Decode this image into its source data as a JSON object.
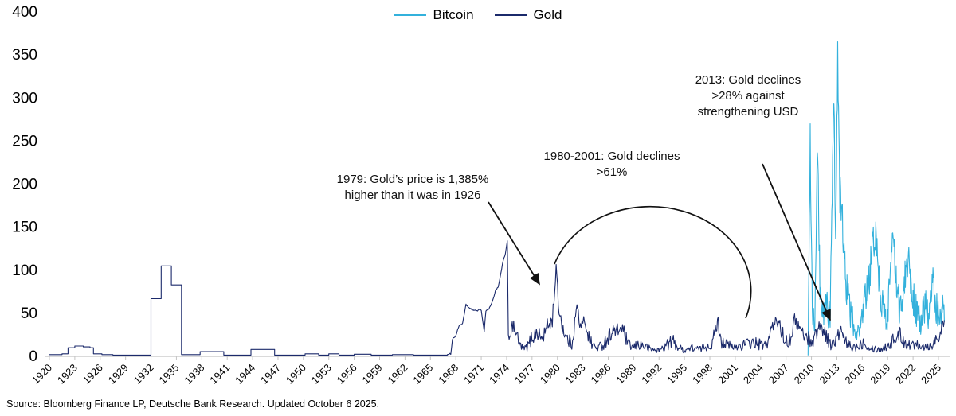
{
  "legend": {
    "items": [
      {
        "label": "Bitcoin",
        "color": "#33b1dc"
      },
      {
        "label": "Gold",
        "color": "#1b2a6b"
      }
    ]
  },
  "annotations": {
    "a1979": {
      "text": "1979: Gold’s price is 1,385% higher than it was in 1926"
    },
    "a1980": {
      "text": "1980-2001: Gold declines >61%"
    },
    "a2013": {
      "text": "2013: Gold declines >28% against strengthening USD"
    }
  },
  "source": "Source: Bloomberg Finance LP, Deutsche Bank Research. Updated October 6 2025.",
  "chart_data": {
    "type": "line",
    "title": "",
    "xlabel": "",
    "ylabel": "",
    "grid": false,
    "legend_position": "top-center",
    "axis_color": "#c4c4c4",
    "x_range": [
      1920,
      2025.8
    ],
    "ylim": [
      0,
      400
    ],
    "y_ticks": [
      0,
      50,
      100,
      150,
      200,
      250,
      300,
      350,
      400
    ],
    "x_ticks": [
      1920,
      1923,
      1926,
      1929,
      1932,
      1935,
      1938,
      1941,
      1944,
      1947,
      1950,
      1953,
      1956,
      1959,
      1962,
      1965,
      1968,
      1971,
      1974,
      1977,
      1980,
      1983,
      1986,
      1989,
      1992,
      1995,
      1998,
      2001,
      2004,
      2007,
      2010,
      2013,
      2016,
      2019,
      2022,
      2025
    ],
    "series": [
      {
        "name": "Bitcoin",
        "color": "#33b1dc",
        "stroke_width": 1.1,
        "noise": {
          "floor": 6,
          "fraction": 0.38,
          "cap": 24,
          "dt": 0.05,
          "seed": 99
        },
        "points": [
          [
            2009.6,
            4
          ],
          [
            2009.85,
            255
          ],
          [
            2010.1,
            60
          ],
          [
            2010.4,
            35
          ],
          [
            2010.7,
            242
          ],
          [
            2011.0,
            80
          ],
          [
            2011.4,
            45
          ],
          [
            2011.8,
            65
          ],
          [
            2012.2,
            40
          ],
          [
            2012.65,
            310
          ],
          [
            2012.85,
            130
          ],
          [
            2013.1,
            352
          ],
          [
            2013.35,
            190
          ],
          [
            2013.7,
            150
          ],
          [
            2014.0,
            95
          ],
          [
            2014.4,
            60
          ],
          [
            2014.9,
            40
          ],
          [
            2015.3,
            25
          ],
          [
            2015.8,
            35
          ],
          [
            2016.3,
            60
          ],
          [
            2016.8,
            90
          ],
          [
            2017.2,
            120
          ],
          [
            2017.6,
            148
          ],
          [
            2017.95,
            95
          ],
          [
            2018.4,
            60
          ],
          [
            2018.9,
            35
          ],
          [
            2019.3,
            105
          ],
          [
            2019.7,
            135
          ],
          [
            2020.1,
            65
          ],
          [
            2020.6,
            55
          ],
          [
            2021.0,
            95
          ],
          [
            2021.5,
            115
          ],
          [
            2021.9,
            75
          ],
          [
            2022.4,
            55
          ],
          [
            2022.9,
            35
          ],
          [
            2023.4,
            65
          ],
          [
            2023.9,
            40
          ],
          [
            2024.3,
            88
          ],
          [
            2024.8,
            55
          ],
          [
            2025.2,
            42
          ],
          [
            2025.5,
            55
          ],
          [
            2025.7,
            40
          ]
        ]
      },
      {
        "name": "Gold",
        "color": "#1b2a6b",
        "stroke_width": 1.1,
        "step_until": 1967,
        "noisy_from": 1974.15,
        "noise": {
          "floor": 2.5,
          "fraction": 0.48,
          "cap": 9,
          "dt": 0.09,
          "seed": 1234,
          "pre_amp": 0.8
        },
        "points": [
          [
            1920,
            2
          ],
          [
            1921.5,
            3
          ],
          [
            1922.2,
            10
          ],
          [
            1923,
            12
          ],
          [
            1924,
            11
          ],
          [
            1924.8,
            10
          ],
          [
            1925.2,
            3
          ],
          [
            1926.2,
            2
          ],
          [
            1927.5,
            1.5
          ],
          [
            1932,
            67
          ],
          [
            1933.2,
            105
          ],
          [
            1934.4,
            83
          ],
          [
            1935.6,
            2
          ],
          [
            1937.8,
            5.5
          ],
          [
            1940.6,
            1.5
          ],
          [
            1943.8,
            8
          ],
          [
            1946.6,
            1.5
          ],
          [
            1950.2,
            3
          ],
          [
            1951.8,
            1.5
          ],
          [
            1953,
            3
          ],
          [
            1954.2,
            1.5
          ],
          [
            1956,
            2.5
          ],
          [
            1958,
            1.5
          ],
          [
            1960.5,
            2
          ],
          [
            1963,
            1.5
          ],
          [
            1967,
            2
          ],
          [
            1967.4,
            3
          ],
          [
            1967.6,
            20
          ],
          [
            1968,
            24
          ],
          [
            1968.4,
            36
          ],
          [
            1968.8,
            38
          ],
          [
            1969.2,
            60
          ],
          [
            1969.7,
            55
          ],
          [
            1970.3,
            53
          ],
          [
            1971.0,
            54
          ],
          [
            1971.35,
            29
          ],
          [
            1971.55,
            53
          ],
          [
            1971.9,
            55
          ],
          [
            1972.3,
            63
          ],
          [
            1972.7,
            77
          ],
          [
            1973.0,
            80
          ],
          [
            1973.3,
            95
          ],
          [
            1973.6,
            112
          ],
          [
            1973.85,
            118
          ],
          [
            1974.08,
            135
          ],
          [
            1974.2,
            22
          ],
          [
            1974.5,
            30
          ],
          [
            1975,
            34
          ],
          [
            1975.4,
            15
          ],
          [
            1976,
            8
          ],
          [
            1976.5,
            12
          ],
          [
            1977,
            22
          ],
          [
            1977.6,
            28
          ],
          [
            1978.2,
            20
          ],
          [
            1978.8,
            35
          ],
          [
            1979.4,
            42
          ],
          [
            1979.85,
            102
          ],
          [
            1980.1,
            62
          ],
          [
            1980.5,
            38
          ],
          [
            1981,
            22
          ],
          [
            1981.7,
            14
          ],
          [
            1982.3,
            58
          ],
          [
            1982.8,
            30
          ],
          [
            1983.2,
            44
          ],
          [
            1983.8,
            18
          ],
          [
            1984.5,
            10
          ],
          [
            1985.2,
            12
          ],
          [
            1986,
            22
          ],
          [
            1986.5,
            30
          ],
          [
            1987,
            28
          ],
          [
            1987.6,
            34
          ],
          [
            1988.3,
            14
          ],
          [
            1989,
            10
          ],
          [
            1989.6,
            14
          ],
          [
            1990.3,
            12
          ],
          [
            1991,
            8
          ],
          [
            1992,
            7
          ],
          [
            1993,
            14
          ],
          [
            1993.6,
            18
          ],
          [
            1994.3,
            10
          ],
          [
            1995,
            7
          ],
          [
            1996,
            10
          ],
          [
            1996.8,
            8
          ],
          [
            1997.5,
            12
          ],
          [
            1998.3,
            14
          ],
          [
            1998.9,
            42
          ],
          [
            1999.4,
            18
          ],
          [
            2000,
            14
          ],
          [
            2000.7,
            10
          ],
          [
            2001.4,
            12
          ],
          [
            2002.2,
            14
          ],
          [
            2003,
            16
          ],
          [
            2003.8,
            14
          ],
          [
            2004.6,
            12
          ],
          [
            2005.4,
            34
          ],
          [
            2006.1,
            42
          ],
          [
            2006.7,
            22
          ],
          [
            2007.4,
            18
          ],
          [
            2008.1,
            44
          ],
          [
            2008.7,
            30
          ],
          [
            2009.4,
            22
          ],
          [
            2010.2,
            18
          ],
          [
            2010.9,
            36
          ],
          [
            2011.5,
            30
          ],
          [
            2012.2,
            14
          ],
          [
            2012.8,
            16
          ],
          [
            2013.4,
            30
          ],
          [
            2014,
            16
          ],
          [
            2014.8,
            10
          ],
          [
            2015.5,
            12
          ],
          [
            2016.2,
            18
          ],
          [
            2017,
            10
          ],
          [
            2018,
            8
          ],
          [
            2019,
            12
          ],
          [
            2019.8,
            20
          ],
          [
            2020.4,
            26
          ],
          [
            2021.1,
            16
          ],
          [
            2021.8,
            12
          ],
          [
            2022.5,
            16
          ],
          [
            2023.2,
            12
          ],
          [
            2024,
            12
          ],
          [
            2024.6,
            18
          ],
          [
            2025.3,
            30
          ],
          [
            2025.7,
            42
          ]
        ]
      }
    ],
    "annotations_geometry_note": "arrow 1979 points to 1980 gold spike; arc circles 1980-2001 region; arrow 2013 points to gold line at 2013"
  }
}
